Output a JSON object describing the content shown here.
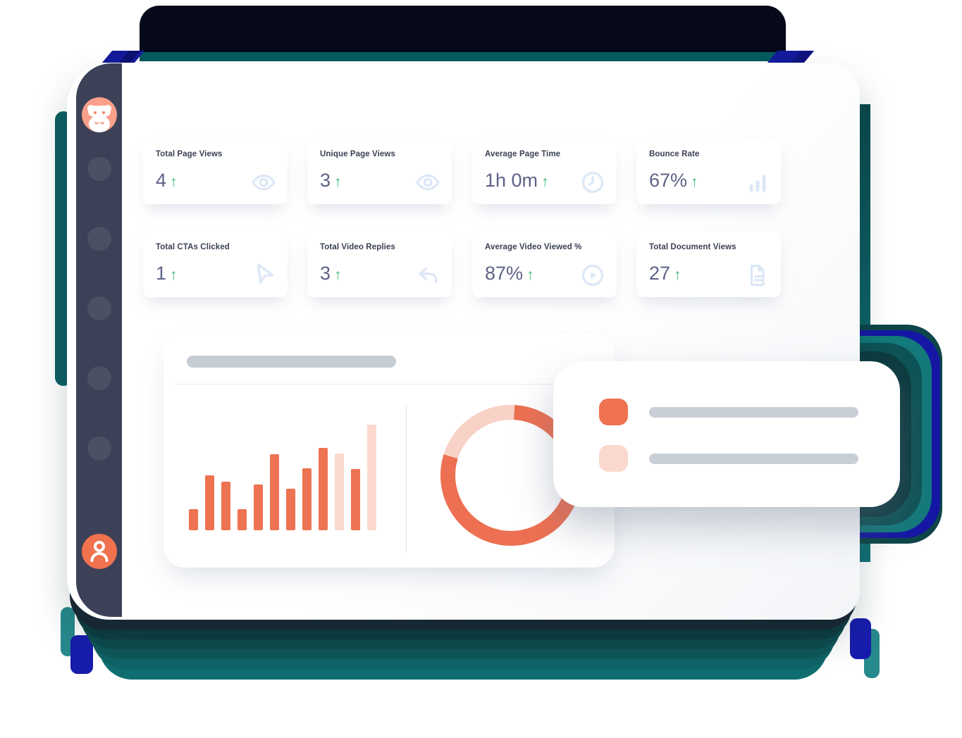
{
  "ui": {
    "up_arrow": "↑"
  },
  "colors": {
    "accent_orange": "#ED7052",
    "accent_orange_light": "#FBD9CE",
    "trend_green": "#3CB878",
    "sidebar": "#3C4157",
    "value_text": "#5E6386",
    "label_text": "#3A4055",
    "icon_blue": "#DCE7F6",
    "decor_teal": "#117173",
    "decor_navy": "#141B9C",
    "placeholder_gray": "#C9CFD7"
  },
  "stats": [
    {
      "label": "Total Page Views",
      "value": "4",
      "trend": "up",
      "icon": "eye-icon"
    },
    {
      "label": "Unique Page Views",
      "value": "3",
      "trend": "up",
      "icon": "eye-icon"
    },
    {
      "label": "Average Page Time",
      "value": "1h 0m",
      "trend": "up",
      "icon": "clock-icon"
    },
    {
      "label": "Bounce Rate",
      "value": "67%",
      "trend": "up",
      "icon": "bar-levels-icon"
    },
    {
      "label": "Total CTAs Clicked",
      "value": "1",
      "trend": "up",
      "icon": "cursor-icon"
    },
    {
      "label": "Total Video Replies",
      "value": "3",
      "trend": "up",
      "icon": "reply-icon"
    },
    {
      "label": "Average Video Viewed %",
      "value": "87%",
      "trend": "up",
      "icon": "play-circle-icon"
    },
    {
      "label": "Total Document Views",
      "value": "27",
      "trend": "up",
      "icon": "document-icon"
    }
  ],
  "chart_data": [
    {
      "type": "bar",
      "title": "",
      "values": [
        30,
        78,
        69,
        30,
        65,
        108,
        59,
        88,
        117,
        109,
        87,
        150
      ],
      "light_bar_indices": [
        9,
        11
      ],
      "bar_color": "#ED7352",
      "bar_color_light": "#FBD9CE",
      "xlabel": "",
      "ylabel": "",
      "grid": false,
      "axis_labels": "none (placeholder chart)"
    },
    {
      "type": "pie",
      "donut": true,
      "start_angle_deg": 3,
      "segments": [
        {
          "name": "filled",
          "value": 79,
          "color": "#ED7052"
        },
        {
          "name": "remainder",
          "value": 21,
          "color": "#F8D2C7"
        }
      ]
    }
  ],
  "legend": {
    "items": [
      {
        "swatch_color": "#EF7251",
        "label": ""
      },
      {
        "swatch_color": "#FBD8CD",
        "label": ""
      }
    ]
  }
}
